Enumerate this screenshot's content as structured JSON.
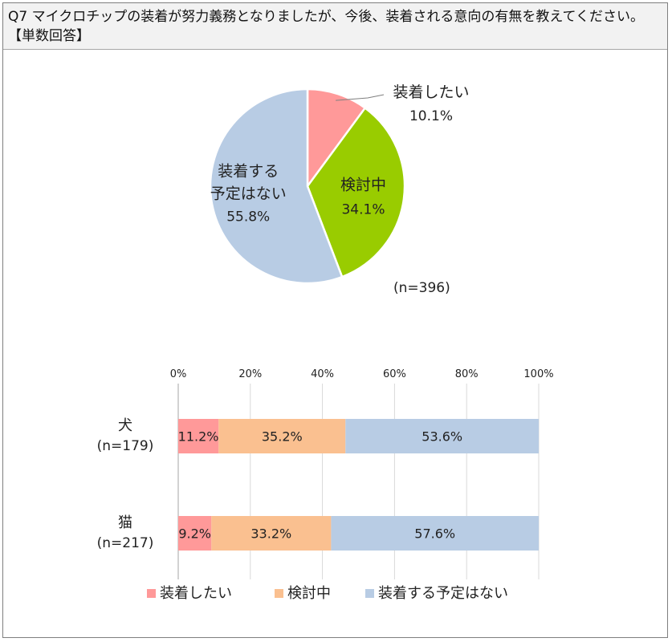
{
  "question": {
    "text": "Q7 マイクロチップの装着が努力義務となりましたが、今後、装着される意向の有無を教えてください。【単数回答】"
  },
  "colors": {
    "pie_want": "#ff9999",
    "pie_considering": "#99cc00",
    "pie_no_plan": "#b8cce4",
    "bar_want": "#ff9999",
    "bar_considering": "#fac090",
    "bar_no_plan": "#b8cce4"
  },
  "chart_data": [
    {
      "type": "pie",
      "labels": [
        "装着したい",
        "検討中",
        "装着する予定はない"
      ],
      "values": [
        10.1,
        34.1,
        55.8
      ],
      "value_labels": [
        "10.1%",
        "34.1%",
        "55.8%"
      ],
      "slice_label_lines": [
        [
          "装着したい"
        ],
        [
          "検討中"
        ],
        [
          "装着する",
          "予定はない"
        ]
      ],
      "note": "(n=396)"
    },
    {
      "type": "bar",
      "orientation": "horizontal",
      "stacked": true,
      "categories": [
        "犬",
        "猫"
      ],
      "category_notes": [
        "(n=179)",
        "(n=217)"
      ],
      "series": [
        {
          "name": "装着したい",
          "values": [
            11.2,
            9.2
          ],
          "labels": [
            "11.2%",
            "9.2%"
          ]
        },
        {
          "name": "検討中",
          "values": [
            35.2,
            33.2
          ],
          "labels": [
            "35.2%",
            "33.2%"
          ]
        },
        {
          "name": "装着する予定はない",
          "values": [
            53.6,
            57.6
          ],
          "labels": [
            "53.6%",
            "57.6%"
          ]
        }
      ],
      "xlim": [
        0,
        100
      ],
      "ticks": [
        "0%",
        "20%",
        "40%",
        "60%",
        "80%",
        "100%"
      ],
      "grid": true,
      "legend": "bottom"
    }
  ]
}
